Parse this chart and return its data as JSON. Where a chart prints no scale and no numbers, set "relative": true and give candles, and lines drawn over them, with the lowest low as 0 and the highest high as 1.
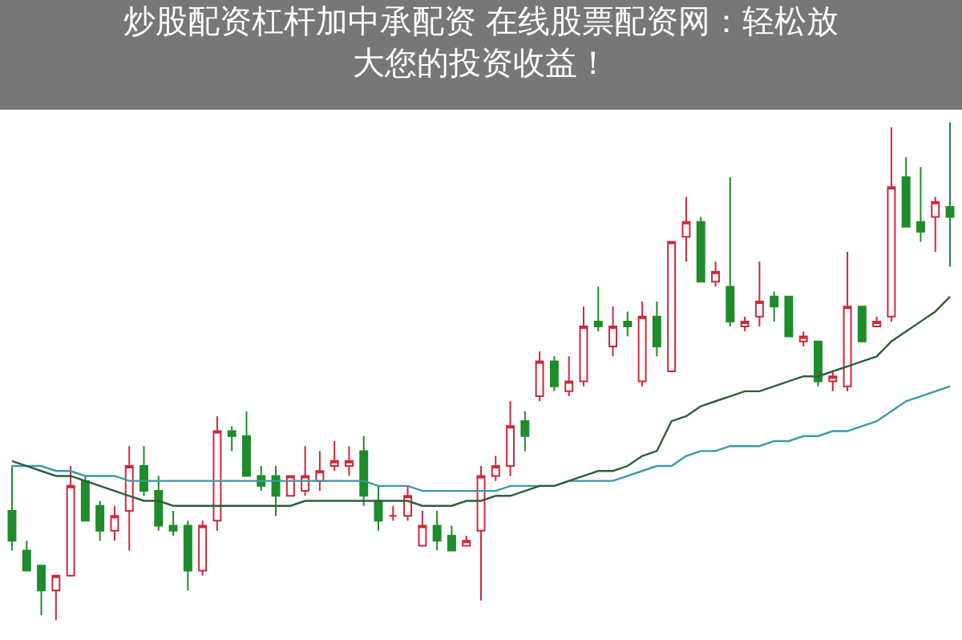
{
  "chart_data": {
    "type": "candlestick",
    "title": "炒股配资杠杆加中承配资 在线股票配资网：轻松放大您的投资收益！",
    "relative": true,
    "categories": [
      null,
      null,
      null,
      null,
      null,
      null,
      null,
      null,
      null,
      null,
      null,
      null,
      null,
      null,
      null,
      null,
      null,
      null,
      null,
      null,
      null,
      null,
      null,
      null,
      null,
      null,
      null,
      null,
      null,
      null,
      null,
      null,
      null,
      null,
      null,
      null,
      null,
      null,
      null,
      null,
      null,
      null,
      null,
      null,
      null,
      null,
      null,
      null,
      null,
      null,
      null,
      null,
      null,
      null,
      null,
      null,
      null,
      null,
      null,
      null,
      null,
      null,
      null,
      null,
      null
    ],
    "ohlc": [
      [
        0.22,
        0.31,
        0.14,
        0.16
      ],
      [
        0.14,
        0.16,
        0.1,
        0.1
      ],
      [
        0.11,
        0.11,
        0.01,
        0.06
      ],
      [
        0.06,
        0.09,
        0,
        0.09
      ],
      [
        0.09,
        0.31,
        0.09,
        0.27
      ],
      [
        0.28,
        0.29,
        0.2,
        0.2
      ],
      [
        0.23,
        0.24,
        0.16,
        0.18
      ],
      [
        0.18,
        0.23,
        0.16,
        0.21
      ],
      [
        0.22,
        0.35,
        0.14,
        0.31
      ],
      [
        0.31,
        0.35,
        0.25,
        0.26
      ],
      [
        0.26,
        0.29,
        0.18,
        0.19
      ],
      [
        0.19,
        0.22,
        0.17,
        0.18
      ],
      [
        0.19,
        0.2,
        0.06,
        0.1
      ],
      [
        0.1,
        0.2,
        0.09,
        0.19
      ],
      [
        0.2,
        0.41,
        0.18,
        0.38
      ],
      [
        0.38,
        0.39,
        0.34,
        0.37
      ],
      [
        0.37,
        0.42,
        0.29,
        0.29
      ],
      [
        0.29,
        0.31,
        0.26,
        0.27
      ],
      [
        0.29,
        0.31,
        0.21,
        0.25
      ],
      [
        0.25,
        0.29,
        0.25,
        0.29
      ],
      [
        0.26,
        0.35,
        0.25,
        0.29
      ],
      [
        0.28,
        0.34,
        0.26,
        0.3
      ],
      [
        0.31,
        0.36,
        0.3,
        0.32
      ],
      [
        0.31,
        0.35,
        0.29,
        0.32
      ],
      [
        0.34,
        0.37,
        0.23,
        0.25
      ],
      [
        0.24,
        0.27,
        0.18,
        0.2
      ],
      [
        0.21,
        0.23,
        0.2,
        0.21
      ],
      [
        0.21,
        0.27,
        0.2,
        0.25
      ],
      [
        0.15,
        0.22,
        0.15,
        0.19
      ],
      [
        0.19,
        0.22,
        0.14,
        0.16
      ],
      [
        0.17,
        0.19,
        0.14,
        0.14
      ],
      [
        0.15,
        0.17,
        0.15,
        0.16
      ],
      [
        0.18,
        0.31,
        0.04,
        0.29
      ],
      [
        0.29,
        0.33,
        0.28,
        0.31
      ],
      [
        0.31,
        0.44,
        0.29,
        0.39
      ],
      [
        0.4,
        0.42,
        0.34,
        0.37
      ],
      [
        0.45,
        0.54,
        0.44,
        0.52
      ],
      [
        0.52,
        0.53,
        0.46,
        0.47
      ],
      [
        0.46,
        0.53,
        0.45,
        0.48
      ],
      [
        0.48,
        0.63,
        0.47,
        0.59
      ],
      [
        0.6,
        0.67,
        0.58,
        0.59
      ],
      [
        0.55,
        0.63,
        0.53,
        0.59
      ],
      [
        0.6,
        0.62,
        0.57,
        0.59
      ],
      [
        0.48,
        0.64,
        0.47,
        0.61
      ],
      [
        0.61,
        0.64,
        0.53,
        0.55
      ],
      [
        0.5,
        0.76,
        0.5,
        0.76
      ],
      [
        0.77,
        0.85,
        0.72,
        0.8
      ],
      [
        0.8,
        0.81,
        0.68,
        0.68
      ],
      [
        0.68,
        0.72,
        0.67,
        0.7
      ],
      [
        0.67,
        0.89,
        0.59,
        0.6
      ],
      [
        0.59,
        0.61,
        0.58,
        0.6
      ],
      [
        0.61,
        0.72,
        0.59,
        0.64
      ],
      [
        0.65,
        0.66,
        0.6,
        0.63
      ],
      [
        0.65,
        0.65,
        0.57,
        0.57
      ],
      [
        0.56,
        0.58,
        0.55,
        0.57
      ],
      [
        0.56,
        0.56,
        0.47,
        0.48
      ],
      [
        0.48,
        0.5,
        0.46,
        0.49
      ],
      [
        0.47,
        0.74,
        0.46,
        0.63
      ],
      [
        0.63,
        0.63,
        0.56,
        0.56
      ],
      [
        0.59,
        0.61,
        0.59,
        0.6
      ],
      [
        0.61,
        0.99,
        0.6,
        0.87
      ],
      [
        0.89,
        0.93,
        0.79,
        0.79
      ],
      [
        0.8,
        0.91,
        0.76,
        0.78
      ],
      [
        0.81,
        0.85,
        0.74,
        0.84
      ],
      [
        0.83,
        1,
        0.71,
        0.81
      ]
    ],
    "colors": [
      "#1e8c2a",
      "#1e8c2a",
      "#1e8c2a",
      "#d0283a",
      "#d0283a",
      "#1e8c2a",
      "#1e8c2a",
      "#d0283a",
      "#d0283a",
      "#1e8c2a",
      "#1e8c2a",
      "#1e8c2a",
      "#1e8c2a",
      "#d0283a",
      "#d0283a",
      "#1e8c2a",
      "#1e8c2a",
      "#1e8c2a",
      "#1e8c2a",
      "#d0283a",
      "#d0283a",
      "#d0283a",
      "#d0283a",
      "#d0283a",
      "#1e8c2a",
      "#1e8c2a",
      "#d0283a",
      "#d0283a",
      "#d0283a",
      "#1e8c2a",
      "#1e8c2a",
      "#d0283a",
      "#d0283a",
      "#d0283a",
      "#d0283a",
      "#1e8c2a",
      "#d0283a",
      "#1e8c2a",
      "#d0283a",
      "#d0283a",
      "#1e8c2a",
      "#d0283a",
      "#1e8c2a",
      "#d0283a",
      "#1e8c2a",
      "#d0283a",
      "#d0283a",
      "#1e8c2a",
      "#d0283a",
      "#1e8c2a",
      "#d0283a",
      "#d0283a",
      "#1e8c2a",
      "#1e8c2a",
      "#d0283a",
      "#1e8c2a",
      "#d0283a",
      "#d0283a",
      "#1e8c2a",
      "#d0283a",
      "#d0283a",
      "#1e8c2a",
      "#1e8c2a",
      "#d0283a",
      "#1e8c2a"
    ],
    "series": [
      {
        "type": "line",
        "color": "#3a9aa8",
        "values": [
          0.31,
          0.31,
          0.31,
          0.3,
          0.3,
          0.29,
          0.29,
          0.29,
          0.28,
          0.28,
          0.28,
          0.28,
          0.28,
          0.28,
          0.28,
          0.28,
          0.28,
          0.28,
          0.28,
          0.28,
          0.28,
          0.28,
          0.28,
          0.28,
          0.28,
          0.27,
          0.27,
          0.27,
          0.26,
          0.26,
          0.26,
          0.26,
          0.26,
          0.26,
          0.27,
          0.27,
          0.27,
          0.27,
          0.28,
          0.28,
          0.28,
          0.28,
          0.29,
          0.3,
          0.31,
          0.31,
          0.33,
          0.34,
          0.34,
          0.35,
          0.35,
          0.35,
          0.36,
          0.36,
          0.37,
          0.37,
          0.38,
          0.38,
          0.39,
          0.4,
          0.42,
          0.44,
          0.45,
          0.46,
          0.47
        ]
      },
      {
        "type": "line",
        "color": "#2f5f3a",
        "values": [
          0.32,
          0.31,
          0.3,
          0.29,
          0.29,
          0.28,
          0.27,
          0.26,
          0.25,
          0.24,
          0.24,
          0.23,
          0.23,
          0.23,
          0.23,
          0.23,
          0.23,
          0.23,
          0.23,
          0.23,
          0.24,
          0.24,
          0.24,
          0.24,
          0.24,
          0.24,
          0.24,
          0.24,
          0.23,
          0.23,
          0.23,
          0.24,
          0.24,
          0.25,
          0.25,
          0.26,
          0.27,
          0.27,
          0.28,
          0.29,
          0.3,
          0.3,
          0.31,
          0.33,
          0.34,
          0.4,
          0.41,
          0.43,
          0.44,
          0.45,
          0.46,
          0.46,
          0.47,
          0.48,
          0.49,
          0.49,
          0.5,
          0.51,
          0.52,
          0.53,
          0.56,
          0.58,
          0.6,
          0.62,
          0.65
        ]
      }
    ]
  }
}
